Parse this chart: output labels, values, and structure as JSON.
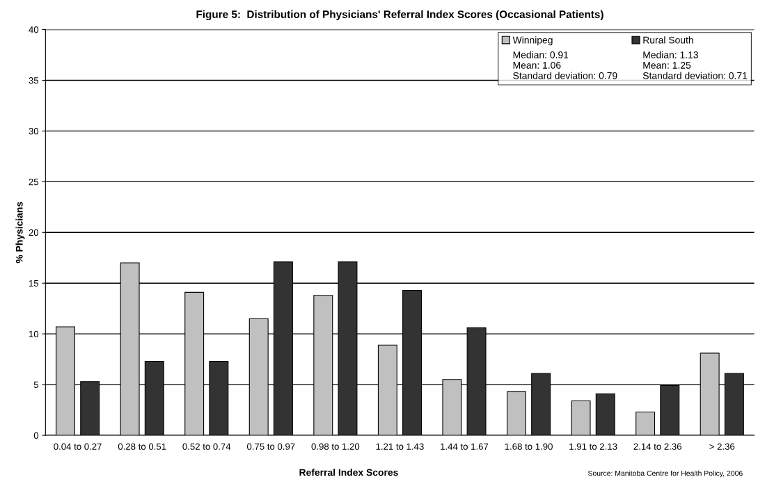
{
  "chart_data": {
    "type": "bar",
    "title": "Figure 5:  Distribution of Physicians' Referral Index Scores (Occasional Patients)",
    "xlabel": "Referral Index Scores",
    "ylabel": "% Physicians",
    "categories": [
      "0.04 to 0.27",
      "0.28 to 0.51",
      "0.52 to 0.74",
      "0.75 to 0.97",
      "0.98 to 1.20",
      "1.21 to 1.43",
      "1.44 to 1.67",
      "1.68 to 1.90",
      "1.91 to 2.13",
      "2.14 to 2.36",
      "> 2.36"
    ],
    "series": [
      {
        "name": "Winnipeg",
        "color": "#c0c0c0",
        "values": [
          10.7,
          17.0,
          14.1,
          11.5,
          13.8,
          8.9,
          5.5,
          4.3,
          3.4,
          2.3,
          8.1
        ]
      },
      {
        "name": "Rural South",
        "color": "#333333",
        "values": [
          5.3,
          7.3,
          7.3,
          17.1,
          17.1,
          14.3,
          10.6,
          6.1,
          4.1,
          4.9,
          6.1
        ]
      }
    ],
    "ylim": [
      0,
      40
    ],
    "yticks": [
      0,
      5,
      10,
      15,
      20,
      25,
      30,
      35,
      40
    ],
    "grid": "y",
    "legend": "top right",
    "annotations": [
      "Median: 0.91\nMean: 1.06\nStandard deviation: 0.79",
      "Median: 1.13\nMean: 1.25\nStandard deviation: 0.71",
      "Source: Manitoba Centre for Health Policy, 2006"
    ]
  }
}
